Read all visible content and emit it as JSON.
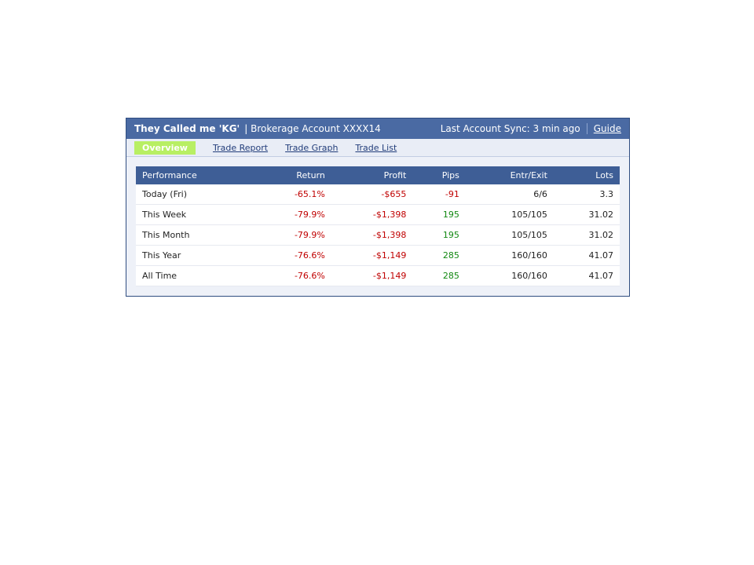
{
  "header": {
    "title": "They Called me 'KG'",
    "account": "| Brokerage Account XXXX14",
    "sync": "Last Account Sync: 3 min ago",
    "guide": "Guide"
  },
  "tabs": [
    "Overview",
    "Trade Report",
    "Trade Graph",
    "Trade List"
  ],
  "performance": {
    "columns": [
      "Performance",
      "Return",
      "Profit",
      "Pips",
      "Entr/Exit",
      "Lots"
    ],
    "rows": [
      [
        "Today (Fri)",
        "-65.1%",
        "-$655",
        "-91",
        "6/6",
        "3.3"
      ],
      [
        "This Week",
        "-79.9%",
        "-$1,398",
        "195",
        "105/105",
        "31.02"
      ],
      [
        "This Month",
        "-79.9%",
        "-$1,398",
        "195",
        "105/105",
        "31.02"
      ],
      [
        "This Year",
        "-76.6%",
        "-$1,149",
        "285",
        "160/160",
        "41.07"
      ],
      [
        "All Time",
        "-76.6%",
        "-$1,149",
        "285",
        "160/160",
        "41.07"
      ]
    ]
  }
}
